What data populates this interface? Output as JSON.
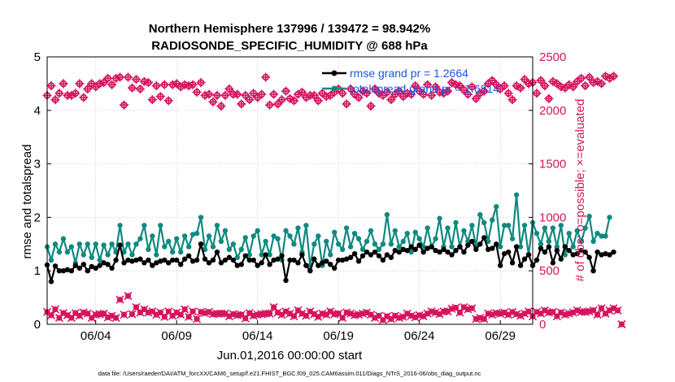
{
  "chart_data": {
    "type": "line",
    "title_line1": "Northern Hemisphere 137996 / 139472 = 98.942%",
    "title_line2": "RADIOSONDE_SPECIFIC_HUMIDITY @ 688 hPa",
    "ylabel_left": "rmse and totalspread",
    "ylabel_right": "# of obs: o=possible; ×=evaluated",
    "xlabel": "Jun.01,2016 00:00:00 start",
    "footer": "data file: /Users/raeder/DAI/ATM_forcXX/CAM6_setup/f.e21.FHIST_BGC.f09_025.CAM6assim.011/Diags_NTrS_2016-06/obs_diag_output.nc",
    "left_ylim": [
      0,
      5
    ],
    "right_ylim": [
      0,
      2500
    ],
    "xlim": [
      1,
      31
    ],
    "left_yticks": [
      "0",
      "1",
      "2",
      "3",
      "4",
      "5"
    ],
    "left_ytick_values": [
      0,
      1,
      2,
      3,
      4,
      5
    ],
    "right_yticks": [
      "0",
      "500",
      "1000",
      "1500",
      "2000",
      "2500"
    ],
    "right_ytick_values": [
      0,
      500,
      1000,
      1500,
      2000,
      2500
    ],
    "xticks": [
      "06/04",
      "06/09",
      "06/14",
      "06/19",
      "06/24",
      "06/29"
    ],
    "xtick_values": [
      4,
      9,
      14,
      19,
      24,
      29
    ],
    "legend": [
      {
        "label": "rmse grand pr = 1.2664",
        "color": "#000000"
      },
      {
        "label": "totalspread grand pr = 1.6814",
        "color": "#0f8a80"
      }
    ],
    "colors": {
      "rmse": "#000000",
      "spread": "#0f8a80",
      "obs": "#d6145e",
      "legend_text": "#1a57e8"
    },
    "x_start": 1.0,
    "x_step": 0.25,
    "series": [
      {
        "name": "rmse",
        "values": [
          1.11,
          0.8,
          1.09,
          1.0,
          1.0,
          1.02,
          1.0,
          1.1,
          1.05,
          1.12,
          1.0,
          1.08,
          1.05,
          1.1,
          1.15,
          1.12,
          1.05,
          1.2,
          1.48,
          1.15,
          1.2,
          1.18,
          1.2,
          1.22,
          1.15,
          1.2,
          1.1,
          1.15,
          1.18,
          1.2,
          1.15,
          1.2,
          1.2,
          1.12,
          1.22,
          1.28,
          1.18,
          1.2,
          1.5,
          1.22,
          1.15,
          1.2,
          1.35,
          1.15,
          1.2,
          1.25,
          1.2,
          1.1,
          1.12,
          1.28,
          1.2,
          1.2,
          1.1,
          1.15,
          1.3,
          1.12,
          1.2,
          1.22,
          1.28,
          0.82,
          1.2,
          1.2,
          1.15,
          1.3,
          1.1,
          1.0,
          1.22,
          1.1,
          1.15,
          1.18,
          1.12,
          1.05,
          1.2,
          1.2,
          1.22,
          1.25,
          1.32,
          1.18,
          1.28,
          1.35,
          1.3,
          1.35,
          1.28,
          1.2,
          1.3,
          1.25,
          1.38,
          1.35,
          1.4,
          1.38,
          1.45,
          1.4,
          1.48,
          1.35,
          1.42,
          1.45,
          1.38,
          1.35,
          1.4,
          1.35,
          1.3,
          1.38,
          1.45,
          1.35,
          1.48,
          1.55,
          1.4,
          1.5,
          1.62,
          1.4,
          1.42,
          1.5,
          1.1,
          1.32,
          1.35,
          1.15,
          1.45,
          1.1,
          1.22,
          1.3,
          1.1,
          1.2,
          1.42,
          1.35,
          1.45,
          1.15,
          1.38,
          1.22,
          1.45,
          1.38,
          1.3,
          1.32,
          1.38,
          1.35,
          1.25,
          1.0,
          1.35,
          1.3,
          1.32,
          1.3,
          1.35
        ]
      },
      {
        "name": "totalspread",
        "values": [
          1.45,
          1.2,
          1.5,
          1.35,
          1.6,
          1.35,
          1.45,
          1.15,
          1.5,
          1.3,
          1.5,
          1.25,
          1.5,
          1.2,
          1.48,
          1.3,
          1.5,
          1.35,
          1.85,
          1.35,
          1.5,
          1.3,
          1.5,
          1.6,
          1.85,
          1.4,
          1.65,
          1.3,
          1.85,
          1.45,
          1.55,
          1.35,
          1.6,
          1.35,
          1.65,
          1.45,
          1.68,
          1.7,
          2.0,
          1.4,
          1.65,
          1.45,
          1.85,
          1.55,
          1.75,
          1.4,
          1.5,
          1.25,
          1.4,
          1.62,
          1.3,
          1.65,
          1.75,
          1.3,
          1.55,
          1.3,
          1.65,
          1.6,
          1.2,
          1.75,
          1.65,
          1.5,
          1.8,
          1.35,
          1.85,
          1.1,
          1.5,
          1.65,
          1.1,
          1.55,
          1.3,
          1.72,
          1.5,
          1.4,
          1.8,
          1.45,
          1.7,
          1.6,
          1.4,
          1.55,
          1.75,
          1.5,
          1.4,
          1.5,
          2.05,
          1.5,
          1.75,
          1.45,
          1.55,
          1.7,
          1.35,
          1.72,
          1.6,
          1.45,
          1.8,
          1.45,
          1.6,
          1.98,
          1.45,
          1.8,
          1.45,
          1.9,
          1.45,
          1.75,
          1.55,
          1.85,
          1.45,
          2.05,
          1.9,
          1.55,
          1.95,
          2.2,
          1.45,
          1.85,
          1.85,
          1.6,
          2.42,
          1.45,
          1.85,
          1.3,
          1.9,
          1.7,
          1.5,
          1.8,
          1.55,
          1.8,
          1.45,
          1.85,
          1.3,
          1.7,
          1.45,
          1.75,
          1.55,
          1.8,
          2.02,
          1.55,
          1.7,
          1.65,
          1.65,
          2.0
        ]
      },
      {
        "name": "obs possible",
        "values": [
          2140,
          2230,
          2100,
          2160,
          2250,
          2140,
          2140,
          2160,
          2250,
          2120,
          2200,
          2250,
          2220,
          2250,
          2260,
          2300,
          2240,
          2300,
          2310,
          2050,
          2310,
          2210,
          2290,
          2200,
          2270,
          2260,
          2100,
          2230,
          2130,
          2240,
          2090,
          2240,
          2250,
          2220,
          2240,
          2230,
          2240,
          2170,
          2260,
          2140,
          2150,
          2080,
          2140,
          2040,
          2140,
          2200,
          2150,
          2150,
          2060,
          2140,
          2100,
          2160,
          2120,
          2150,
          2310,
          2050,
          2150,
          2060,
          2100,
          2180,
          2110,
          2090,
          2150,
          2170,
          2120,
          2140,
          2140,
          2090,
          2160,
          2130,
          2140,
          2170,
          2200,
          2160,
          2060,
          2200,
          2150,
          2120,
          2180,
          2160,
          2040,
          2200,
          2160,
          2140,
          2170,
          2100,
          2150,
          2180,
          2130,
          2160,
          2150,
          2230,
          2180,
          2150,
          2240,
          2140,
          2220,
          2170,
          2160,
          2180,
          2260,
          2240,
          2230,
          2190,
          2150,
          2220,
          2110,
          2160,
          2180,
          2250,
          2280,
          2240,
          2200,
          2230,
          2160,
          2100,
          2230,
          2210,
          2290,
          2250,
          2260,
          2160,
          2280,
          2230,
          2110,
          2270,
          2250,
          2220,
          2210,
          2240,
          2220,
          2270,
          2300,
          2230,
          2310,
          2260,
          2270,
          2250,
          2320,
          2300,
          2320
        ]
      },
      {
        "name": "obs evaluated",
        "values": [
          115,
          85,
          140,
          60,
          105,
          85,
          60,
          105,
          80,
          110,
          100,
          60,
          90,
          95,
          100,
          65,
          80,
          60,
          230,
          90,
          265,
          95,
          160,
          110,
          140,
          110,
          120,
          90,
          110,
          70,
          120,
          80,
          110,
          90,
          140,
          70,
          120,
          50,
          115,
          105,
          115,
          95,
          100,
          100,
          100,
          75,
          95,
          85,
          90,
          55,
          105,
          80,
          90,
          95,
          100,
          100,
          160,
          110,
          90,
          120,
          100,
          75,
          130,
          100,
          80,
          120,
          95,
          70,
          100,
          90,
          120,
          95,
          100,
          60,
          110,
          100,
          85,
          90,
          100,
          110,
          90,
          60,
          80,
          40,
          75,
          50,
          80,
          60,
          70,
          100,
          80,
          65,
          85,
          75,
          100,
          120,
          110,
          95,
          120,
          120,
          145,
          155,
          110,
          160,
          140,
          150,
          50,
          60,
          50,
          100,
          90,
          105,
          100,
          110,
          90,
          115,
          95,
          80,
          100,
          120,
          75,
          115,
          100,
          130,
          110,
          115,
          75,
          110,
          90,
          100,
          110,
          130,
          115,
          115,
          120,
          130,
          90,
          150,
          100,
          130,
          150,
          130,
          0
        ]
      }
    ]
  }
}
